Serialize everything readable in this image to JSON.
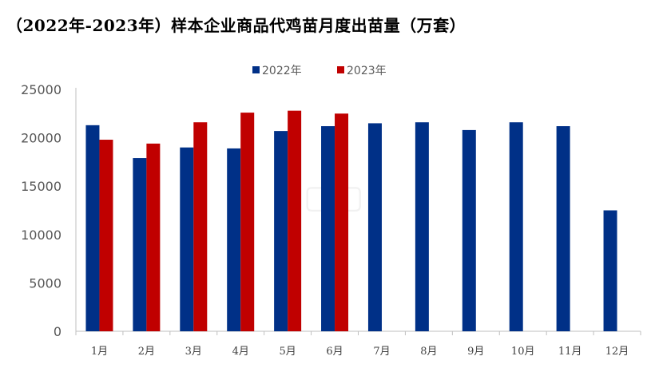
{
  "chart_data": {
    "type": "bar",
    "title": "（2022年-2023年）样本企业商品代鸡苗月度出苗量（万套）",
    "categories": [
      "1月",
      "2月",
      "3月",
      "4月",
      "5月",
      "6月",
      "7月",
      "8月",
      "9月",
      "10月",
      "11月",
      "12月"
    ],
    "series": [
      {
        "name": "2022年",
        "color": "#003087",
        "values": [
          21300,
          17900,
          19000,
          18900,
          20700,
          21200,
          21500,
          21600,
          20800,
          21600,
          21200,
          12500
        ]
      },
      {
        "name": "2023年",
        "color": "#C00000",
        "values": [
          19800,
          19400,
          21600,
          22600,
          22800,
          22500,
          null,
          null,
          null,
          null,
          null,
          null
        ]
      }
    ],
    "y_ticks": [
      "0",
      "5000",
      "10000",
      "15000",
      "20000",
      "25000"
    ],
    "ylim": [
      0,
      25000
    ],
    "xlabel": "",
    "ylabel": "",
    "grid": false,
    "legend_position": "top-center"
  }
}
